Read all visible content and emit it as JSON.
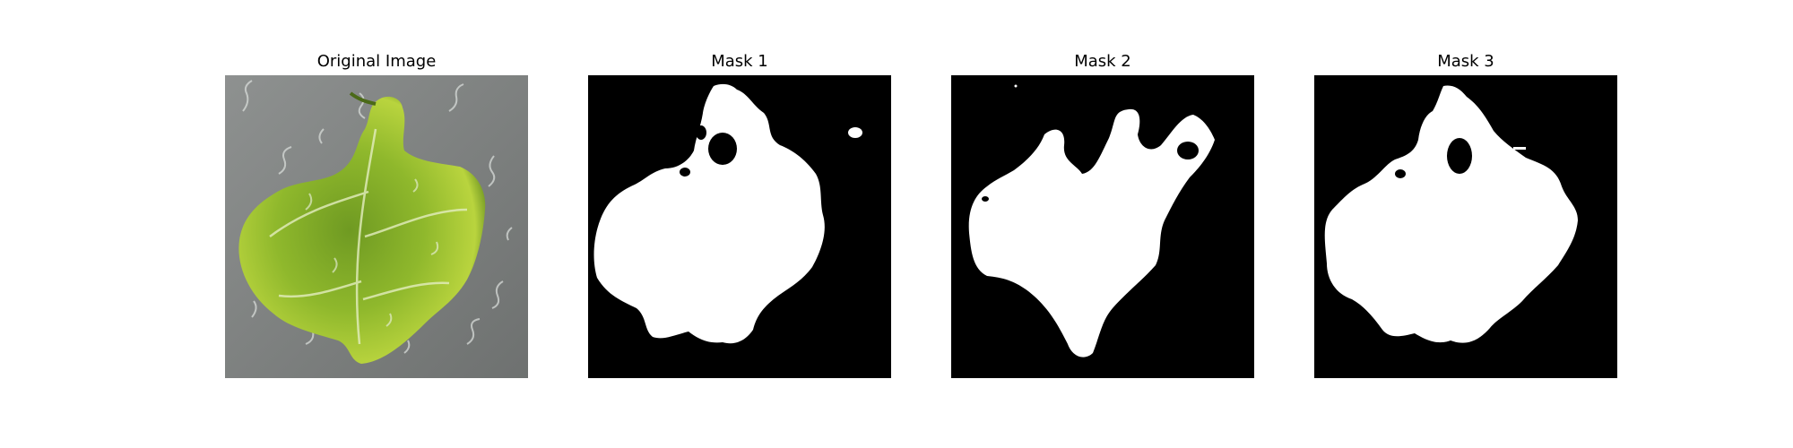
{
  "figure": {
    "panels": [
      {
        "title": "Original Image",
        "kind": "photo",
        "subject": "leaf-photo"
      },
      {
        "title": "Mask 1",
        "kind": "mask",
        "subject": "segmentation-mask"
      },
      {
        "title": "Mask 2",
        "kind": "mask",
        "subject": "segmentation-mask"
      },
      {
        "title": "Mask 3",
        "kind": "mask",
        "subject": "segmentation-mask"
      }
    ]
  },
  "colors": {
    "background": "#ffffff",
    "mask_background": "#000000",
    "mask_foreground": "#ffffff",
    "leaf_light": "#b8d43a",
    "leaf_dark": "#5e8a1c",
    "photo_background": "#8a8d8c"
  }
}
